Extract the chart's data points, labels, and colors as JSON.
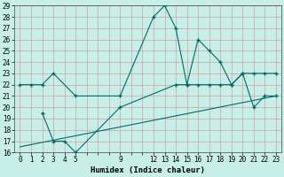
{
  "title": "",
  "xlabel": "Humidex (Indice chaleur)",
  "bg_color": "#c8eee8",
  "line_color": "#006b6b",
  "grid_color": "#d4a0a0",
  "xlim": [
    -0.5,
    23.5
  ],
  "ylim": [
    16,
    29
  ],
  "xticks": [
    0,
    1,
    2,
    3,
    4,
    5,
    9,
    12,
    13,
    14,
    15,
    16,
    17,
    18,
    19,
    20,
    21,
    22,
    23
  ],
  "yticks": [
    16,
    17,
    18,
    19,
    20,
    21,
    22,
    23,
    24,
    25,
    26,
    27,
    28,
    29
  ],
  "line1_x": [
    0,
    1,
    2,
    3,
    5,
    9,
    12,
    13,
    14,
    15,
    16,
    17,
    18,
    19,
    20,
    21,
    22,
    23
  ],
  "line1_y": [
    22,
    22,
    22,
    23,
    21,
    21,
    28,
    29,
    27,
    22,
    26,
    25,
    24,
    22,
    23,
    20,
    21,
    21
  ],
  "line2_x": [
    2,
    3,
    4,
    5,
    9,
    14,
    15,
    16,
    17,
    18,
    19,
    20,
    21,
    22,
    23
  ],
  "line2_y": [
    19.5,
    17,
    17,
    16,
    20,
    22,
    22,
    22,
    22,
    22,
    22,
    23,
    23,
    23,
    23
  ],
  "line3_x": [
    0,
    23
  ],
  "line3_y": [
    16.5,
    21
  ]
}
